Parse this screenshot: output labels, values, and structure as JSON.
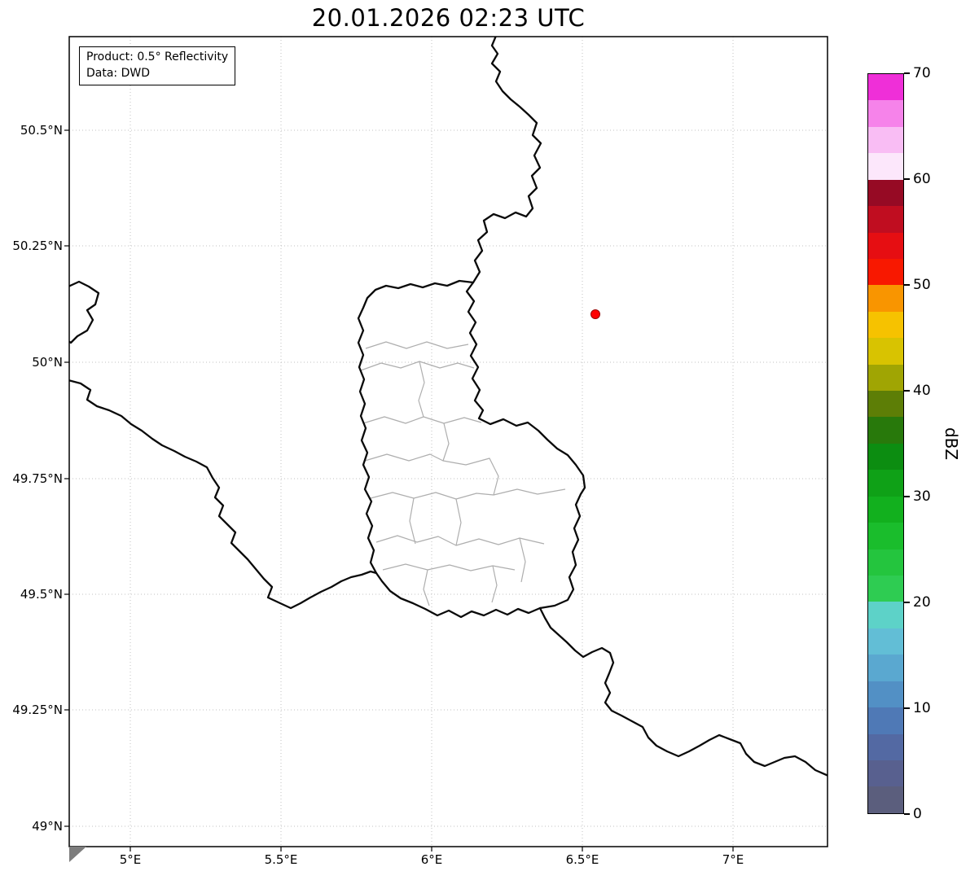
{
  "title": "20.01.2026 02:23 UTC",
  "annotation_box": {
    "product": "Product: 0.5° Reflectivity",
    "source": "Data: DWD"
  },
  "axes": {
    "x_tick_labels": [
      "5°E",
      "5.5°E",
      "6°E",
      "6.5°E",
      "7°E"
    ],
    "y_tick_labels": [
      "50.5°N",
      "50.25°N",
      "50°N",
      "49.75°N",
      "49.5°N",
      "49.25°N",
      "49°N"
    ]
  },
  "colorbar": {
    "label": "dBZ",
    "min": 0,
    "max": 70,
    "tick_labels": [
      "70",
      "60",
      "50",
      "40",
      "30",
      "20",
      "10",
      "0"
    ],
    "colors_bottom_to_top": [
      "#5b5e7d",
      "#58608f",
      "#5369a3",
      "#4f79b6",
      "#5290c5",
      "#5aa8d0",
      "#62bed6",
      "#5dd2c8",
      "#2ecc52",
      "#24c53e",
      "#1abd2c",
      "#12b01e",
      "#0fa117",
      "#0c8d11",
      "#28790b",
      "#5d7e06",
      "#a0a503",
      "#d8c301",
      "#f6c200",
      "#f99500",
      "#f81800",
      "#e60e12",
      "#c00d20",
      "#960a24",
      "#fce7fb",
      "#f9bdf4",
      "#f683ea",
      "#ef2fd8"
    ]
  },
  "map": {
    "marker": {
      "color": "#ff0000"
    },
    "colors": {
      "country_border": "#0a0a0a",
      "district_border": "#aeaeae",
      "grid": "#c2c2c2"
    }
  }
}
